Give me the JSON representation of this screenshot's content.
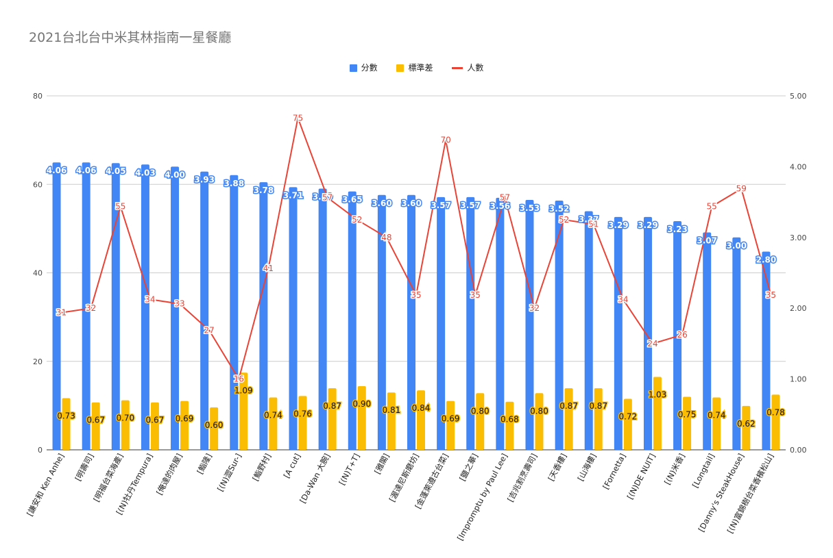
{
  "chart_data": {
    "type": "bar",
    "title": "2021台北台中米其林指南一星餐廳",
    "categories": [
      "[謙安和 Ken Anhe]",
      "[明壽司]",
      "[明福台菜海產]",
      "[(N)牡丹Tempura]",
      "[俺達的肉屋]",
      "[鮨隆]",
      "[(N)澀Sur-]",
      "[鮨野村]",
      "[A cut]",
      "[Da-Wan 大腕]",
      "[(N)T+T]",
      "[雅閣]",
      "[渥達尼斯磨坊]",
      "[金蓬萊遵古台菜]",
      "[鹽之華]",
      "[Impromptu by Paul Lee]",
      "[吉兆割烹壽司]",
      "[天香樓]",
      "[山海樓]",
      "[Fornetta]",
      "[(N)DE NUIT]",
      "[(N)米香]",
      "[Longtail]",
      "[Danny's SteakHouse]",
      "[(N)富錦樹台菜香檳松山]"
    ],
    "series": [
      {
        "name": "分數",
        "axis": "right",
        "color": "#4285f4",
        "values": [
          4.06,
          4.06,
          4.05,
          4.03,
          4.0,
          3.93,
          3.88,
          3.78,
          3.71,
          3.69,
          3.65,
          3.6,
          3.6,
          3.57,
          3.57,
          3.56,
          3.53,
          3.52,
          3.37,
          3.29,
          3.29,
          3.23,
          3.07,
          3.0,
          2.8
        ],
        "labels": [
          "4.06",
          "4.06",
          "4.05",
          "4.03",
          "4.00",
          "3.93",
          "3.88",
          "3.78",
          "3.71",
          "3.69",
          "3.65",
          "3.60",
          "3.60",
          "3.57",
          "3.57",
          "3.56",
          "3.53",
          "3.52",
          "3.37",
          "3.29",
          "3.29",
          "3.23",
          "3.07",
          "3.00",
          "2.80"
        ]
      },
      {
        "name": "標準差",
        "axis": "right",
        "color": "#fbbc04",
        "values": [
          0.73,
          0.67,
          0.7,
          0.67,
          0.69,
          0.6,
          1.09,
          0.74,
          0.76,
          0.87,
          0.9,
          0.81,
          0.84,
          0.69,
          0.8,
          0.68,
          0.8,
          0.87,
          0.87,
          0.72,
          1.03,
          0.75,
          0.74,
          0.62,
          0.78
        ],
        "labels": [
          "0.73",
          "0.67",
          "0.70",
          "0.67",
          "0.69",
          "0.60",
          "1.09",
          "0.74",
          "0.76",
          "0.87",
          "0.90",
          "0.81",
          "0.84",
          "0.69",
          "0.80",
          "0.68",
          "0.80",
          "0.87",
          "0.87",
          "0.72",
          "1.03",
          "0.75",
          "0.74",
          "0.62",
          "0.78"
        ]
      },
      {
        "name": "人數",
        "axis": "left",
        "type": "line",
        "color": "#ea4335",
        "values": [
          31,
          32,
          55,
          34,
          33,
          27,
          16,
          41,
          75,
          57,
          52,
          48,
          35,
          70,
          35,
          57,
          32,
          52,
          51,
          34,
          24,
          26,
          55,
          59,
          35
        ],
        "labels": [
          "31",
          "32",
          "55",
          "34",
          "33",
          "27",
          "16",
          "41",
          "75",
          "57",
          "52",
          "48",
          "35",
          "70",
          "35",
          "57",
          "32",
          "52",
          "51",
          "34",
          "24",
          "26",
          "55",
          "59",
          "35"
        ]
      }
    ],
    "left_axis": {
      "ylim": [
        0,
        80
      ],
      "ticks": [
        "0",
        "20",
        "40",
        "60",
        "80"
      ]
    },
    "right_axis": {
      "ylim": [
        0,
        5
      ],
      "ticks": [
        "0.00",
        "1.00",
        "2.00",
        "3.00",
        "4.00",
        "5.00"
      ]
    },
    "grid": true,
    "legend_position": "top"
  }
}
